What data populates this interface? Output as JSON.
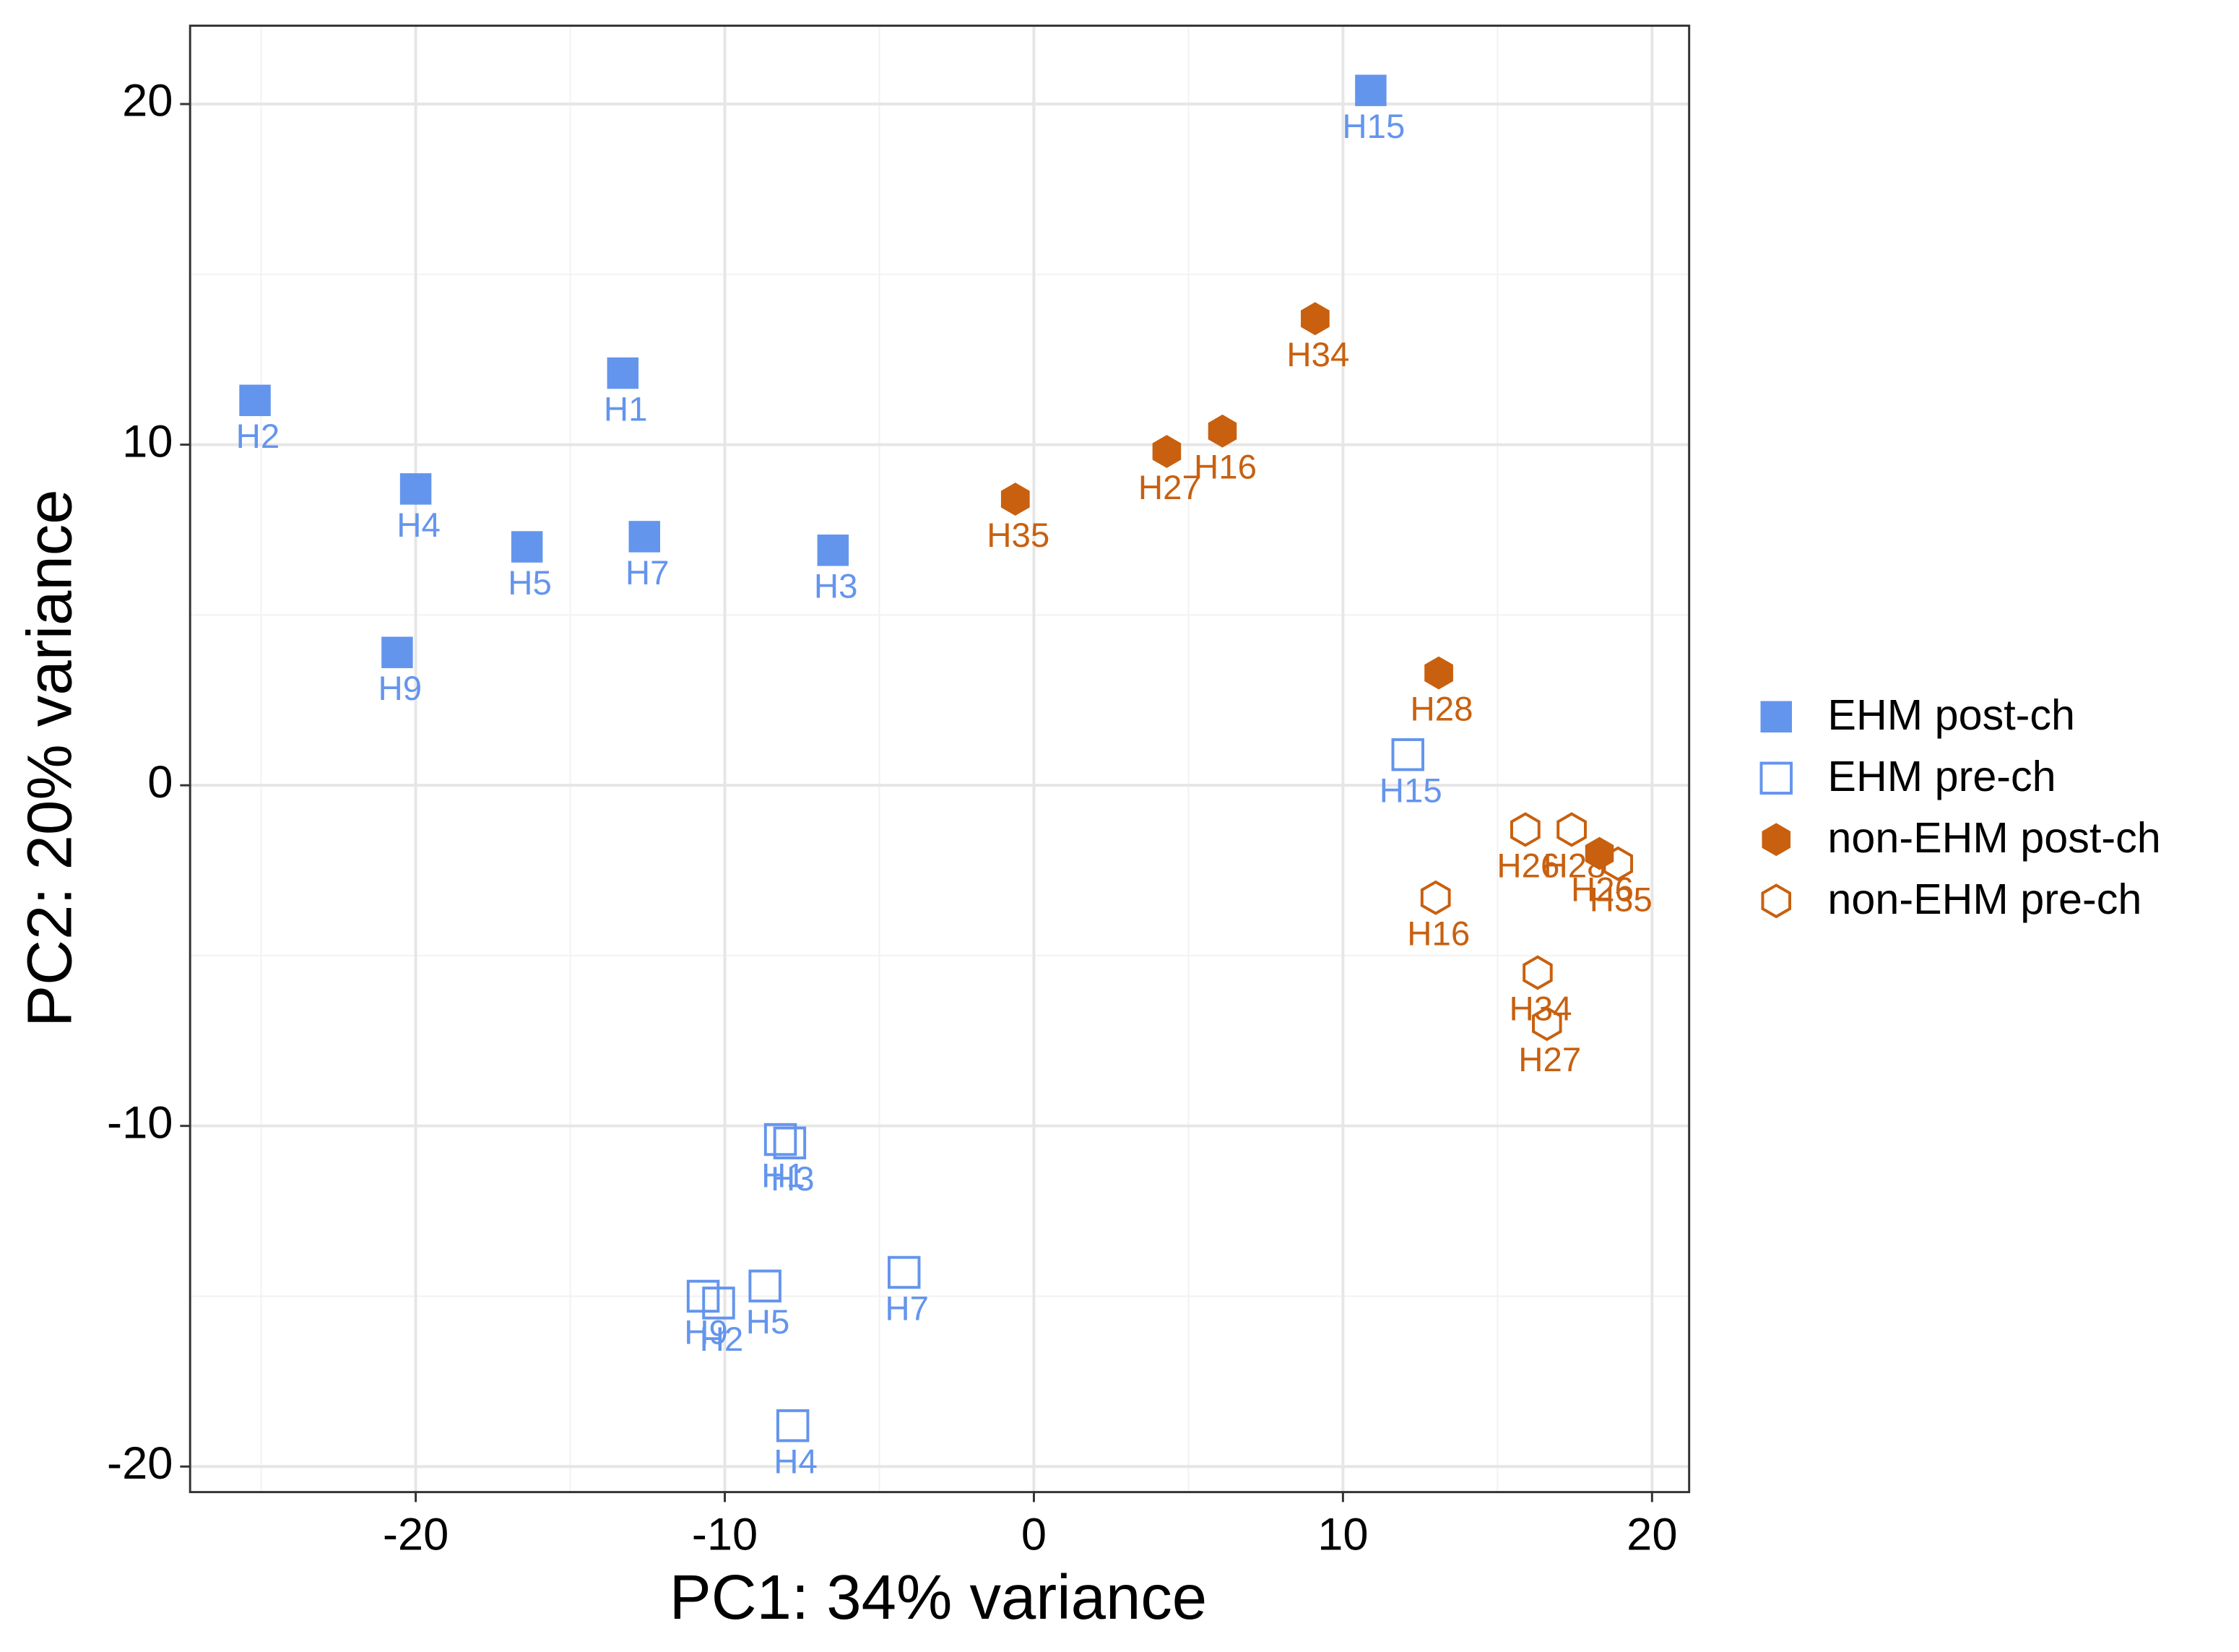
{
  "chart_data": {
    "type": "scatter",
    "x_label": "PC1: 34% variance",
    "y_label": "PC2: 20% variance",
    "xlim": [
      -27.3,
      21.2
    ],
    "ylim": [
      -20.75,
      22.3
    ],
    "xticks": [
      -20,
      -10,
      0,
      10,
      20
    ],
    "yticks": [
      -20,
      -10,
      0,
      10,
      20
    ],
    "x_minor_ticks": [
      -25,
      -15,
      -5,
      5,
      15
    ],
    "y_minor_ticks": [
      -15,
      -5,
      5,
      15
    ],
    "grid": true,
    "legend_position": "right",
    "series": [
      {
        "name": "EHM post-ch",
        "color": "#6495ed",
        "marker": "square",
        "filled": true,
        "labels": [
          "H2",
          "H1",
          "H4",
          "H5",
          "H7",
          "H3",
          "H9",
          "H15"
        ],
        "x": [
          -25.2,
          -13.3,
          -20.0,
          -16.4,
          -12.6,
          -6.5,
          -20.6,
          10.9
        ],
        "values": [
          11.3,
          12.1,
          8.7,
          7.0,
          7.3,
          6.9,
          3.9,
          20.4
        ]
      },
      {
        "name": "EHM pre-ch",
        "color": "#6495ed",
        "marker": "square",
        "filled": false,
        "labels": [
          "H15",
          "H1",
          "H3",
          "H9",
          "H2",
          "H5",
          "H7",
          "H4"
        ],
        "x": [
          12.1,
          -8.2,
          -7.9,
          -10.7,
          -10.2,
          -8.7,
          -4.2,
          -7.8
        ],
        "values": [
          0.9,
          -10.4,
          -10.5,
          -15.0,
          -15.2,
          -14.7,
          -14.3,
          -18.8
        ]
      },
      {
        "name": "non-EHM post-ch",
        "color": "#c8600f",
        "marker": "hexagon",
        "filled": true,
        "labels": [
          "H35",
          "H27",
          "H16",
          "H34",
          "H28",
          "H26"
        ],
        "x": [
          -0.6,
          4.3,
          6.1,
          9.1,
          13.1,
          18.3
        ],
        "values": [
          8.4,
          9.8,
          10.4,
          13.7,
          3.3,
          -2.0
        ]
      },
      {
        "name": "non-EHM pre-ch",
        "color": "#c8600f",
        "marker": "hexagon",
        "filled": false,
        "labels": [
          "H26",
          "H28",
          "H35",
          "H16",
          "H34",
          "H27"
        ],
        "x": [
          15.9,
          17.4,
          18.9,
          13.0,
          16.3,
          16.6
        ],
        "values": [
          -1.3,
          -1.3,
          -2.3,
          -3.3,
          -5.5,
          -7.0
        ]
      }
    ]
  }
}
